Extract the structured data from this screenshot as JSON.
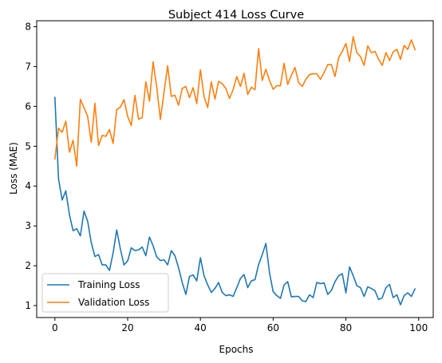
{
  "chart_data": {
    "type": "line",
    "title": "Subject 414 Loss Curve",
    "xlabel": "Epochs",
    "ylabel": "Loss (MAE)",
    "xlim": [
      -5,
      104
    ],
    "ylim": [
      0.7,
      8.15
    ],
    "xticks": [
      0,
      20,
      40,
      60,
      80,
      100
    ],
    "yticks": [
      1,
      2,
      3,
      4,
      5,
      6,
      7,
      8
    ],
    "grid": false,
    "legend_position": "lower-left",
    "x": [
      0,
      1,
      2,
      3,
      4,
      5,
      6,
      7,
      8,
      9,
      10,
      11,
      12,
      13,
      14,
      15,
      16,
      17,
      18,
      19,
      20,
      21,
      22,
      23,
      24,
      25,
      26,
      27,
      28,
      29,
      30,
      31,
      32,
      33,
      34,
      35,
      36,
      37,
      38,
      39,
      40,
      41,
      42,
      43,
      44,
      45,
      46,
      47,
      48,
      49,
      50,
      51,
      52,
      53,
      54,
      55,
      56,
      57,
      58,
      59,
      60,
      61,
      62,
      63,
      64,
      65,
      66,
      67,
      68,
      69,
      70,
      71,
      72,
      73,
      74,
      75,
      76,
      77,
      78,
      79,
      80,
      81,
      82,
      83,
      84,
      85,
      86,
      87,
      88,
      89,
      90,
      91,
      92,
      93,
      94,
      95,
      96,
      97,
      98,
      99
    ],
    "series": [
      {
        "name": "Training Loss",
        "color": "#1f77b4",
        "values": [
          6.23,
          4.18,
          3.65,
          3.88,
          3.28,
          2.88,
          2.93,
          2.75,
          3.37,
          3.12,
          2.58,
          2.23,
          2.28,
          2.02,
          2.02,
          1.88,
          2.32,
          2.9,
          2.42,
          2.02,
          2.12,
          2.45,
          2.38,
          2.4,
          2.47,
          2.25,
          2.72,
          2.5,
          2.22,
          2.13,
          2.15,
          2.02,
          2.38,
          2.25,
          1.95,
          1.58,
          1.28,
          1.73,
          1.77,
          1.62,
          2.2,
          1.75,
          1.52,
          1.33,
          1.43,
          1.58,
          1.33,
          1.25,
          1.27,
          1.23,
          1.45,
          1.68,
          1.78,
          1.45,
          1.62,
          1.65,
          2.03,
          2.28,
          2.56,
          1.82,
          1.35,
          1.25,
          1.18,
          1.52,
          1.6,
          1.22,
          1.23,
          1.23,
          1.12,
          1.1,
          1.27,
          1.2,
          1.58,
          1.55,
          1.57,
          1.28,
          1.38,
          1.6,
          1.75,
          1.8,
          1.32,
          1.97,
          1.75,
          1.5,
          1.45,
          1.23,
          1.47,
          1.43,
          1.37,
          1.15,
          1.2,
          1.45,
          1.53,
          1.2,
          1.27,
          1.02,
          1.25,
          1.32,
          1.23,
          1.42
        ]
      },
      {
        "name": "Validation Loss",
        "color": "#ff7f0e",
        "values": [
          4.68,
          5.45,
          5.35,
          5.63,
          4.85,
          5.15,
          4.5,
          6.18,
          5.97,
          5.75,
          5.1,
          6.08,
          5.02,
          5.27,
          5.25,
          5.42,
          5.07,
          5.92,
          5.98,
          6.17,
          5.75,
          5.52,
          6.28,
          5.68,
          5.72,
          6.62,
          6.13,
          7.12,
          6.48,
          5.67,
          6.35,
          7.02,
          6.25,
          6.28,
          6.03,
          6.45,
          6.5,
          6.22,
          6.47,
          6.07,
          6.92,
          6.25,
          5.97,
          6.62,
          6.18,
          6.63,
          6.57,
          6.45,
          6.2,
          6.42,
          6.75,
          6.5,
          6.83,
          6.3,
          6.48,
          6.42,
          7.45,
          6.65,
          6.93,
          6.65,
          6.43,
          6.52,
          6.52,
          7.08,
          6.55,
          6.78,
          6.98,
          6.6,
          6.5,
          6.68,
          6.8,
          6.82,
          6.82,
          6.68,
          6.85,
          7.05,
          7.05,
          6.75,
          7.22,
          7.38,
          7.58,
          7.13,
          7.75,
          7.35,
          7.25,
          7.03,
          7.52,
          7.35,
          7.38,
          7.18,
          7.03,
          7.35,
          7.15,
          7.37,
          7.43,
          7.18,
          7.53,
          7.43,
          7.67,
          7.42
        ]
      }
    ]
  }
}
